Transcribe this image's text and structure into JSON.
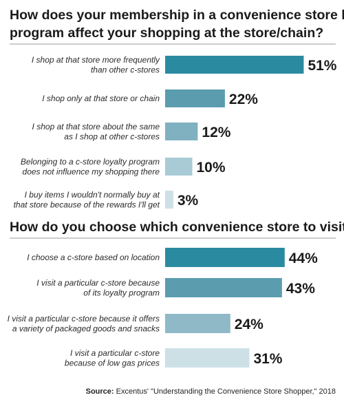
{
  "source": {
    "label": "Source:",
    "text": " Excentus' \"Understanding the Convenience Store Shopper,\" 2018"
  },
  "chart_data": [
    {
      "type": "bar",
      "orientation": "horizontal",
      "title": [
        "How does your membership in a convenience store loyalty",
        "program affect your shopping at the store/chain?"
      ],
      "categories": [
        [
          "I shop at that store more frequently",
          "than other c-stores"
        ],
        [
          "I shop only at that store or chain"
        ],
        [
          "I shop at that store about the same",
          "as I shop at other c-stores"
        ],
        [
          "Belonging to a c-store loyalty program",
          "does not influence my shopping there"
        ],
        [
          "I buy items I wouldn't normally buy at",
          "that store because of the rewards I'll get"
        ]
      ],
      "values": [
        51,
        22,
        12,
        10,
        3
      ],
      "labels": [
        "51%",
        "22%",
        "12%",
        "10%",
        "3%"
      ],
      "bar_colors": [
        "#2a8ba0",
        "#5b9cae",
        "#7fb1c0",
        "#a8cbd6",
        "#cde0e6"
      ]
    },
    {
      "type": "bar",
      "orientation": "horizontal",
      "title": [
        "How do you choose which convenience store to visit?"
      ],
      "categories": [
        [
          "I choose a c-store based on location"
        ],
        [
          "I visit a particular c-store because",
          "of its loyalty program"
        ],
        [
          "I visit a particular c-store because it offers",
          "a variety of packaged goods and snacks"
        ],
        [
          "I visit a particular c-store",
          "because of low gas prices"
        ]
      ],
      "values": [
        44,
        43,
        24,
        31
      ],
      "labels": [
        "44%",
        "43%",
        "24%",
        "31%"
      ],
      "bar_colors": [
        "#2a8ba0",
        "#5b9cae",
        "#8fb9c6",
        "#cde0e6"
      ]
    }
  ]
}
